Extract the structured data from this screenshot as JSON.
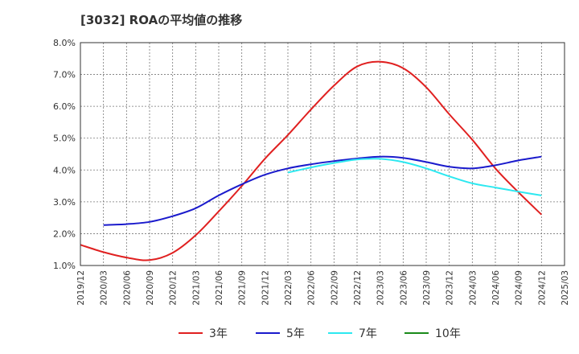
{
  "chart_data": {
    "type": "line",
    "title": "[3032]  ROAの平均値の推移",
    "xlabel": "",
    "ylabel": "",
    "x": [
      "2019/12",
      "2020/03",
      "2020/06",
      "2020/09",
      "2020/12",
      "2021/03",
      "2021/06",
      "2021/09",
      "2021/12",
      "2022/03",
      "2022/06",
      "2022/09",
      "2022/12",
      "2023/03",
      "2023/06",
      "2023/09",
      "2023/12",
      "2024/03",
      "2024/06",
      "2024/09",
      "2024/12",
      "2025/03"
    ],
    "ylim": [
      1.0,
      8.0
    ],
    "yticks": [
      "1.0%",
      "2.0%",
      "3.0%",
      "4.0%",
      "5.0%",
      "6.0%",
      "7.0%",
      "8.0%"
    ],
    "grid": true,
    "legend_position": "bottom",
    "series": [
      {
        "name": "3年",
        "color": "#e02020",
        "values": [
          1.65,
          1.42,
          1.25,
          1.17,
          1.4,
          1.95,
          2.7,
          3.5,
          4.35,
          5.1,
          5.9,
          6.65,
          7.25,
          7.4,
          7.2,
          6.6,
          5.75,
          4.95,
          4.05,
          3.3,
          2.6,
          null
        ]
      },
      {
        "name": "5年",
        "color": "#1a1acc",
        "values": [
          null,
          2.27,
          2.3,
          2.37,
          2.55,
          2.8,
          3.2,
          3.55,
          3.85,
          4.05,
          4.18,
          4.28,
          4.36,
          4.42,
          4.38,
          4.25,
          4.1,
          4.05,
          4.15,
          4.3,
          4.42,
          null
        ]
      },
      {
        "name": "7年",
        "color": "#2de8f0",
        "values": [
          null,
          null,
          null,
          null,
          null,
          null,
          null,
          null,
          null,
          3.92,
          4.08,
          4.22,
          4.33,
          4.35,
          4.25,
          4.05,
          3.8,
          3.58,
          3.45,
          3.32,
          3.2,
          null
        ]
      },
      {
        "name": "10年",
        "color": "#1a8a1a",
        "values": [
          null,
          null,
          null,
          null,
          null,
          null,
          null,
          null,
          null,
          null,
          null,
          null,
          null,
          null,
          null,
          null,
          null,
          null,
          null,
          null,
          null,
          null
        ]
      }
    ]
  }
}
